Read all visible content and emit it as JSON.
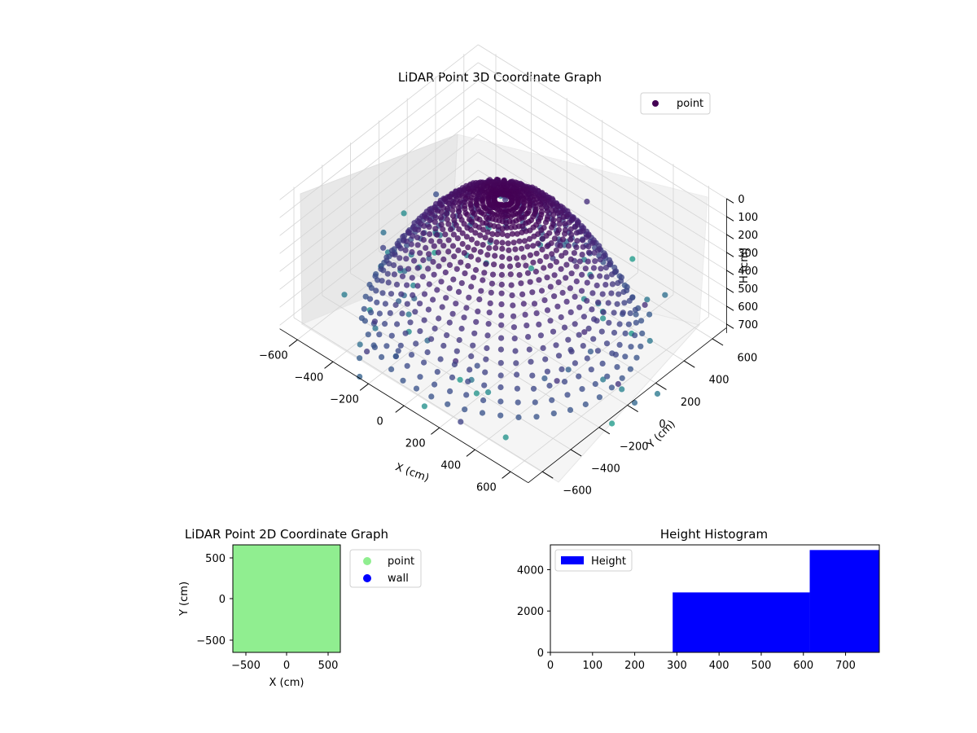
{
  "chart_data": [
    {
      "type": "scatter3d",
      "title": "LiDAR Point 3D Coordinate Graph",
      "xlabel": "X (cm)",
      "ylabel": "Y (cm)",
      "zlabel": "H (cm)",
      "legend": [
        "point"
      ],
      "legend_position": "top-right",
      "x_ticks": [
        "−600",
        "−400",
        "−200",
        "0",
        "200",
        "400",
        "600"
      ],
      "y_ticks": [
        "−600",
        "−400",
        "−200",
        "0",
        "200",
        "400",
        "600"
      ],
      "z_ticks": [
        "0",
        "100",
        "200",
        "300",
        "400",
        "500",
        "600",
        "700"
      ],
      "xlim": [
        -700,
        700
      ],
      "ylim": [
        -700,
        700
      ],
      "zlim": [
        750,
        0
      ],
      "z_inverted": true,
      "colormap": "viridis",
      "grid": true,
      "shape": "bowl-shaped point cloud with azimuth rings and radial point columns",
      "max_radius": 600,
      "max_height": 720
    },
    {
      "type": "scatter",
      "title": "LiDAR Point 2D Coordinate Graph",
      "xlabel": "X (cm)",
      "ylabel": "Y (cm)",
      "x_ticks": [
        "−500",
        "0",
        "500"
      ],
      "y_ticks": [
        "−500",
        "0",
        "500"
      ],
      "xlim": [
        -650,
        650
      ],
      "ylim": [
        -650,
        650
      ],
      "legend": [
        "point",
        "wall"
      ],
      "legend_position": "outside-right",
      "series": [
        {
          "name": "point",
          "color": "#90ee90"
        },
        {
          "name": "wall",
          "color": "#0000ff"
        }
      ]
    },
    {
      "type": "bar",
      "title": "Height Histogram",
      "legend": [
        "Height"
      ],
      "legend_position": "upper-left",
      "x_ticks": [
        "0",
        "100",
        "200",
        "300",
        "400",
        "500",
        "600",
        "700"
      ],
      "y_ticks": [
        "0",
        "2000",
        "4000"
      ],
      "xlim": [
        0,
        780
      ],
      "ylim": [
        0,
        5200
      ],
      "color": "#0000ff",
      "bins": [
        {
          "x0": 0,
          "x1": 290,
          "count": 0
        },
        {
          "x0": 290,
          "x1": 615,
          "count": 2900
        },
        {
          "x0": 615,
          "x1": 780,
          "count": 4950
        }
      ]
    }
  ]
}
